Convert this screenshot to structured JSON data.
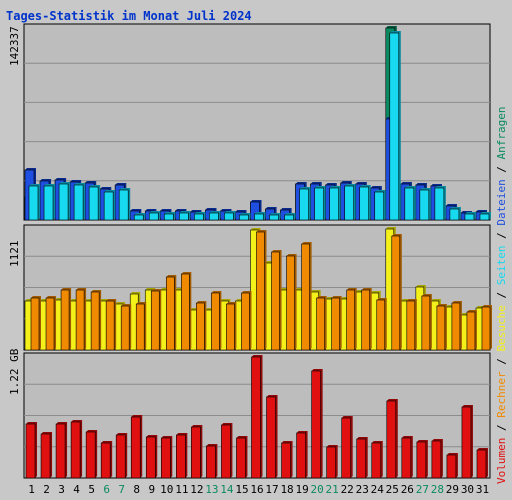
{
  "title": "Tages-Statistik im Monat Juli 2024",
  "colors": {
    "title": "#0033cc",
    "background": "#c8c8c8",
    "plot": "#bdbdbd",
    "grid": "#8c8c8c",
    "hits": "#0a8a60",
    "files": "#1f4fe0",
    "pages": "#17d9ef",
    "visits": "#f4f01a",
    "sites": "#f08a00",
    "kbytes": "#e01010",
    "weekend_label": "#0a8a60",
    "day_label": "#000000"
  },
  "chart_data": [
    {
      "type": "bar",
      "title": "Tages-Statistik im Monat Juli 2024",
      "ymax_label": "142337",
      "ylim": [
        0,
        142337
      ],
      "grid": true,
      "categories": [
        "1",
        "2",
        "3",
        "4",
        "5",
        "6",
        "7",
        "8",
        "9",
        "10",
        "11",
        "12",
        "13",
        "14",
        "15",
        "16",
        "17",
        "18",
        "19",
        "20",
        "21",
        "22",
        "23",
        "24",
        "25",
        "26",
        "27",
        "28",
        "29",
        "30",
        "31"
      ],
      "weekend_days": [
        6,
        7,
        13,
        14,
        20,
        21,
        27,
        28
      ],
      "series": [
        {
          "name": "Anfragen",
          "values": [
            17000,
            29000,
            30000,
            28500,
            27500,
            23000,
            26000,
            7000,
            7000,
            6800,
            6800,
            6200,
            7200,
            7000,
            5900,
            13000,
            8500,
            7300,
            27000,
            27000,
            26000,
            27500,
            27000,
            24000,
            142337,
            27000,
            26000,
            25500,
            10500,
            5500,
            5800
          ]
        },
        {
          "name": "Dateien",
          "values": [
            37000,
            29000,
            30000,
            28500,
            27500,
            23000,
            26000,
            7000,
            7000,
            6800,
            6800,
            6200,
            7200,
            7000,
            5900,
            13000,
            8500,
            7300,
            27000,
            27000,
            26000,
            27500,
            27000,
            24000,
            75000,
            27000,
            26000,
            25500,
            10500,
            5500,
            5800
          ]
        },
        {
          "name": "Seiten",
          "values": [
            25000,
            25500,
            26500,
            25800,
            24500,
            21000,
            22000,
            4000,
            5200,
            4500,
            5000,
            4500,
            5400,
            5200,
            3800,
            4500,
            4000,
            3800,
            23000,
            24000,
            23500,
            25000,
            24500,
            21000,
            139000,
            24000,
            22000,
            23500,
            8000,
            4500,
            4500
          ]
        }
      ]
    },
    {
      "type": "bar",
      "ymax_label": "1121",
      "ylim": [
        0,
        1121
      ],
      "grid": true,
      "categories": [
        "1",
        "2",
        "3",
        "4",
        "5",
        "6",
        "7",
        "8",
        "9",
        "10",
        "11",
        "12",
        "13",
        "14",
        "15",
        "16",
        "17",
        "18",
        "19",
        "20",
        "21",
        "22",
        "23",
        "24",
        "25",
        "26",
        "27",
        "28",
        "29",
        "30",
        "31"
      ],
      "series": [
        {
          "name": "Besuche",
          "values": [
            450,
            450,
            460,
            450,
            450,
            450,
            430,
            520,
            560,
            560,
            560,
            370,
            370,
            450,
            450,
            1110,
            810,
            560,
            560,
            540,
            470,
            470,
            540,
            530,
            1121,
            450,
            580,
            450,
            400,
            320,
            390
          ]
        },
        {
          "name": "Rechner",
          "values": [
            480,
            480,
            560,
            560,
            540,
            450,
            410,
            430,
            550,
            680,
            700,
            440,
            530,
            430,
            530,
            1090,
            910,
            870,
            980,
            480,
            480,
            560,
            560,
            460,
            1060,
            450,
            500,
            410,
            440,
            350,
            400
          ]
        }
      ]
    },
    {
      "type": "bar",
      "ymax_label": "1.22 GB",
      "ylim": [
        0,
        1.22
      ],
      "grid": true,
      "categories": [
        "1",
        "2",
        "3",
        "4",
        "5",
        "6",
        "7",
        "8",
        "9",
        "10",
        "11",
        "12",
        "13",
        "14",
        "15",
        "16",
        "17",
        "18",
        "19",
        "20",
        "21",
        "22",
        "23",
        "24",
        "25",
        "26",
        "27",
        "28",
        "29",
        "30",
        "31"
      ],
      "series": [
        {
          "name": "Volumen",
          "values": [
            0.54,
            0.44,
            0.54,
            0.56,
            0.46,
            0.35,
            0.43,
            0.62,
            0.41,
            0.4,
            0.43,
            0.51,
            0.32,
            0.53,
            0.4,
            1.22,
            0.82,
            0.35,
            0.45,
            1.08,
            0.31,
            0.6,
            0.39,
            0.35,
            0.78,
            0.4,
            0.36,
            0.37,
            0.23,
            0.72,
            0.28
          ]
        }
      ]
    }
  ],
  "legend": {
    "top": [
      {
        "text": "Anfragen",
        "key": "hits"
      },
      {
        "text": "Dateien",
        "key": "files"
      }
    ],
    "mid": [
      {
        "text": "Seiten",
        "key": "pages"
      },
      {
        "text": "Besuche",
        "key": "visits"
      }
    ],
    "bottom": [
      {
        "text": "Rechner",
        "key": "sites"
      },
      {
        "text": "Volumen",
        "key": "kbytes"
      }
    ],
    "separator": "/"
  }
}
